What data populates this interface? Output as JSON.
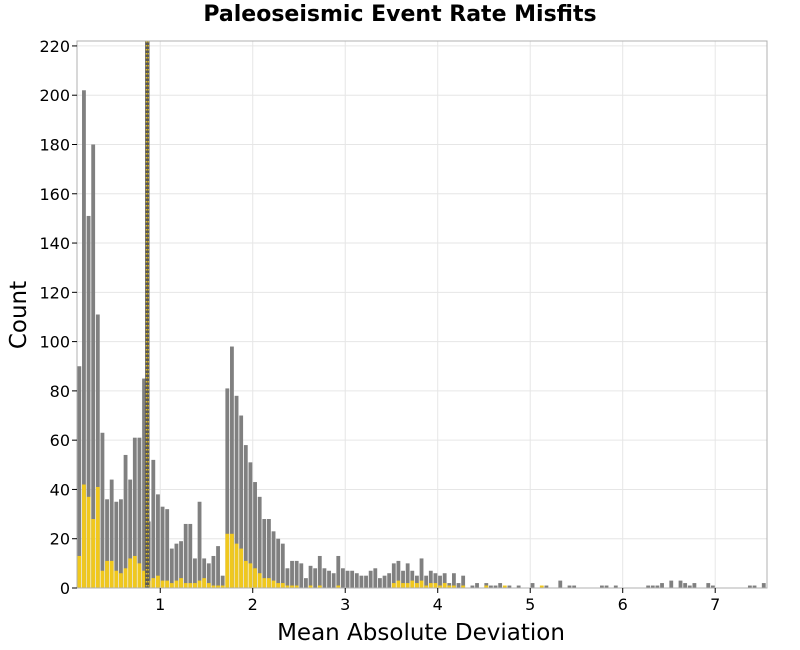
{
  "chart_data": {
    "type": "bar",
    "title": "Paleoseismic Event Rate Misfits",
    "xlabel": "Mean Absolute Deviation",
    "ylabel": "Count",
    "xlim": [
      0.1,
      7.56
    ],
    "ylim": [
      0,
      222
    ],
    "x_ticks": [
      1,
      2,
      3,
      4,
      5,
      6,
      7
    ],
    "y_ticks": [
      0,
      20,
      40,
      60,
      80,
      100,
      120,
      140,
      160,
      180,
      200,
      220
    ],
    "grid": true,
    "bin_start": 0.1,
    "bin_width": 0.05,
    "vertical_lines": [
      0.85,
      0.87
    ],
    "colors": {
      "all": "#808080",
      "subset": "#f0c81e",
      "vline": "#595959",
      "vline_dots": "#f0c81e"
    },
    "series": [
      {
        "values": [
          90,
          202,
          151,
          180,
          111,
          63,
          36,
          44,
          35,
          36,
          54,
          44,
          61,
          61,
          85,
          27,
          52,
          38,
          33,
          32,
          16,
          18,
          19,
          26,
          26,
          12,
          35,
          12,
          10,
          13,
          17,
          5,
          81,
          98,
          78,
          70,
          58,
          51,
          43,
          37,
          28,
          28,
          23,
          20,
          18,
          8,
          11,
          11,
          10,
          4,
          9,
          8,
          13,
          8,
          7,
          6,
          13,
          8,
          7,
          7,
          6,
          5,
          5,
          7,
          8,
          4,
          5,
          6,
          10,
          11,
          7,
          10,
          7,
          5,
          12,
          5,
          7,
          6,
          5,
          6,
          2,
          6,
          2,
          5,
          0,
          1,
          2,
          0,
          2,
          1,
          1,
          2,
          0,
          1,
          0,
          1,
          0,
          0,
          2,
          0,
          0,
          1,
          0,
          0,
          3,
          0,
          1,
          1,
          0,
          0,
          0,
          0,
          0,
          1,
          1,
          0,
          1,
          0,
          0,
          0,
          0,
          0,
          0,
          1,
          1,
          1,
          2,
          0,
          3,
          0,
          3,
          2,
          1,
          2,
          0,
          0,
          2,
          1,
          0,
          0,
          0,
          0,
          0,
          0,
          0,
          1,
          1,
          0,
          2,
          0,
          0,
          0,
          0,
          0,
          0,
          0,
          0,
          0,
          0,
          0,
          0,
          0,
          0,
          0,
          0,
          0,
          0,
          0,
          0,
          2,
          1,
          1,
          0,
          0,
          0,
          1
        ]
      },
      {
        "values": [
          13,
          42,
          37,
          28,
          41,
          7,
          11,
          11,
          7,
          6,
          8,
          12,
          13,
          10,
          7,
          3,
          4,
          5,
          3,
          3,
          2,
          3,
          4,
          2,
          2,
          2,
          3,
          4,
          2,
          1,
          1,
          1,
          22,
          22,
          18,
          16,
          11,
          10,
          8,
          6,
          4,
          4,
          3,
          2,
          2,
          1,
          1,
          1,
          0,
          0,
          1,
          0,
          1,
          0,
          0,
          0,
          1,
          0,
          0,
          0,
          0,
          0,
          0,
          0,
          0,
          0,
          0,
          0,
          2,
          3,
          2,
          2,
          3,
          2,
          3,
          1,
          2,
          2,
          1,
          2,
          1,
          1,
          0,
          1,
          0,
          0,
          0,
          0,
          1,
          0,
          0,
          0,
          1,
          0,
          0,
          0,
          0,
          0,
          0,
          0,
          1,
          0,
          0,
          0,
          0,
          0,
          0,
          0,
          0,
          0,
          0,
          0,
          0,
          0,
          0,
          0,
          0,
          0,
          0,
          0,
          0,
          0,
          0,
          0,
          0,
          0,
          0,
          0,
          0,
          0,
          0,
          0,
          0,
          0,
          0,
          0,
          0,
          0,
          0,
          0,
          0,
          0,
          0,
          0,
          0,
          0,
          0,
          0,
          0,
          0,
          0,
          0,
          0,
          0,
          0,
          0,
          0,
          0,
          0,
          0,
          0,
          0,
          0,
          0,
          0,
          0,
          0,
          0,
          0,
          0,
          0,
          0,
          0,
          0,
          0,
          0,
          0,
          0
        ]
      }
    ]
  }
}
